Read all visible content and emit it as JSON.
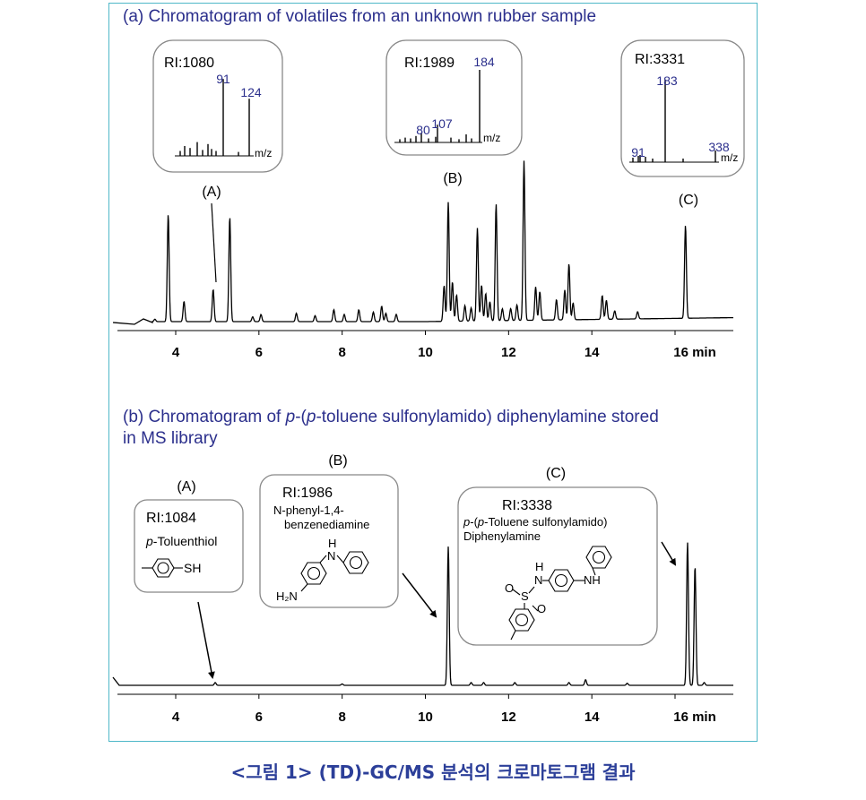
{
  "caption": "<그림 1> (TD)-GC/MS 분석의 크로마토그램 결과",
  "colors": {
    "border": "#4fb8c8",
    "title": "#2b2f8c",
    "caption": "#2c3f99",
    "ion_label": "#2b2f8c"
  },
  "chart_data": [
    {
      "type": "line",
      "title": "(a) Chromatogram of volatiles from an unknown rubber sample",
      "xlabel": "min",
      "x_ticks": [
        "4",
        "6",
        "8",
        "10",
        "12",
        "14",
        "16 min"
      ],
      "xlim": [
        2.6,
        17.4
      ],
      "peaks": [
        {
          "x": 3.3,
          "h": 0.03
        },
        {
          "x": 3.5,
          "h": 0.02
        },
        {
          "x": 3.82,
          "h": 0.9
        },
        {
          "x": 4.2,
          "h": 0.17
        },
        {
          "x": 4.9,
          "h": 0.27
        },
        {
          "x": 5.3,
          "h": 0.88
        },
        {
          "x": 5.85,
          "h": 0.04
        },
        {
          "x": 6.05,
          "h": 0.06
        },
        {
          "x": 6.9,
          "h": 0.07
        },
        {
          "x": 7.35,
          "h": 0.05
        },
        {
          "x": 7.8,
          "h": 0.1
        },
        {
          "x": 8.05,
          "h": 0.06
        },
        {
          "x": 8.4,
          "h": 0.1
        },
        {
          "x": 8.75,
          "h": 0.08
        },
        {
          "x": 8.95,
          "h": 0.13
        },
        {
          "x": 9.05,
          "h": 0.07
        },
        {
          "x": 9.3,
          "h": 0.06
        },
        {
          "x": 10.45,
          "h": 0.3
        },
        {
          "x": 10.55,
          "h": 1.0
        },
        {
          "x": 10.65,
          "h": 0.33
        },
        {
          "x": 10.75,
          "h": 0.22
        },
        {
          "x": 10.95,
          "h": 0.13
        },
        {
          "x": 11.1,
          "h": 0.11
        },
        {
          "x": 11.25,
          "h": 0.78
        },
        {
          "x": 11.35,
          "h": 0.3
        },
        {
          "x": 11.45,
          "h": 0.23
        },
        {
          "x": 11.55,
          "h": 0.16
        },
        {
          "x": 11.7,
          "h": 0.98
        },
        {
          "x": 11.85,
          "h": 0.1
        },
        {
          "x": 12.05,
          "h": 0.1
        },
        {
          "x": 12.2,
          "h": 0.13
        },
        {
          "x": 12.37,
          "h": 1.34
        },
        {
          "x": 12.65,
          "h": 0.28
        },
        {
          "x": 12.75,
          "h": 0.24
        },
        {
          "x": 13.15,
          "h": 0.17
        },
        {
          "x": 13.35,
          "h": 0.25
        },
        {
          "x": 13.45,
          "h": 0.47
        },
        {
          "x": 13.55,
          "h": 0.14
        },
        {
          "x": 14.25,
          "h": 0.2
        },
        {
          "x": 14.35,
          "h": 0.16
        },
        {
          "x": 14.55,
          "h": 0.07
        },
        {
          "x": 15.1,
          "h": 0.06
        },
        {
          "x": 16.25,
          "h": 0.78
        }
      ],
      "peak_labels": [
        {
          "label": "(A)",
          "x": 4.9
        },
        {
          "label": "(B)",
          "x": 10.55
        },
        {
          "label": "(C)",
          "x": 16.25
        }
      ],
      "mass_spectra": [
        {
          "ri": "RI:1080",
          "xaxis": "m/z",
          "ions": [
            {
              "mz": "91",
              "h": 0.78
            },
            {
              "mz": "124",
              "h": 0.58
            }
          ],
          "minor_peaks": [
            0.05,
            0.1,
            0.08,
            0.14,
            0.06,
            0.12,
            0.07,
            0.05,
            0.04
          ]
        },
        {
          "ri": "RI:1989",
          "xaxis": "m/z",
          "ions": [
            {
              "mz": "80",
              "h": 0.12
            },
            {
              "mz": "107",
              "h": 0.22
            },
            {
              "mz": "184",
              "h": 0.9
            }
          ],
          "minor_peaks": [
            0.04,
            0.06,
            0.05,
            0.08,
            0.05,
            0.07,
            0.06,
            0.04,
            0.1,
            0.05
          ]
        },
        {
          "ri": "RI:3331",
          "xaxis": "m/z",
          "ions": [
            {
              "mz": "91",
              "h": 0.07
            },
            {
              "mz": "183",
              "h": 0.92
            },
            {
              "mz": "338",
              "h": 0.13
            }
          ],
          "minor_peaks": [
            0.05,
            0.08,
            0.06,
            0.04,
            0.04
          ]
        }
      ]
    },
    {
      "type": "line",
      "title": "(b) Chromatogram of p-(p-toluene sulfonylamido) diphenylamine stored in MS library",
      "title_parts": [
        "(b) Chromatogram of ",
        "p",
        "-(",
        "p",
        "-toluene sulfonylamido) diphenylamine stored",
        "in MS library"
      ],
      "xlabel": "min",
      "x_ticks": [
        "4",
        "6",
        "8",
        "10",
        "12",
        "14",
        "16 min"
      ],
      "xlim": [
        2.6,
        17.4
      ],
      "peaks": [
        {
          "x": 4.95,
          "h": 0.02
        },
        {
          "x": 8.0,
          "h": 0.01
        },
        {
          "x": 10.55,
          "h": 1.0
        },
        {
          "x": 11.1,
          "h": 0.02
        },
        {
          "x": 11.4,
          "h": 0.02
        },
        {
          "x": 12.15,
          "h": 0.02
        },
        {
          "x": 13.45,
          "h": 0.02
        },
        {
          "x": 13.85,
          "h": 0.04
        },
        {
          "x": 14.85,
          "h": 0.015
        },
        {
          "x": 16.3,
          "h": 1.03
        },
        {
          "x": 16.48,
          "h": 0.86
        },
        {
          "x": 16.7,
          "h": 0.02
        }
      ],
      "compounds": [
        {
          "label": "(A)",
          "ri": "RI:1084",
          "name_prefix": "p",
          "name_rest": "-Toluenthiol",
          "structure": {
            "substituent": "SH"
          },
          "x": 4.95
        },
        {
          "label": "(B)",
          "ri": "RI:1986",
          "name_line1": "N-phenyl-1,4-",
          "name_line2": "benzenediamine",
          "structure": {
            "nh": "H",
            "nh_n": "N",
            "amine": "H₂N"
          },
          "x": 10.55
        },
        {
          "label": "(C)",
          "ri": "RI:3338",
          "name_prefix": "p",
          "name_mid": "-(",
          "name_prefix2": "p",
          "name_rest": "-Toluene sulfonylamido)",
          "name_line2": "Diphenylamine",
          "structure": {
            "h": "H",
            "n": "N",
            "nh": "NH",
            "s": "S",
            "o": "O"
          },
          "x": 16.3
        }
      ]
    }
  ]
}
